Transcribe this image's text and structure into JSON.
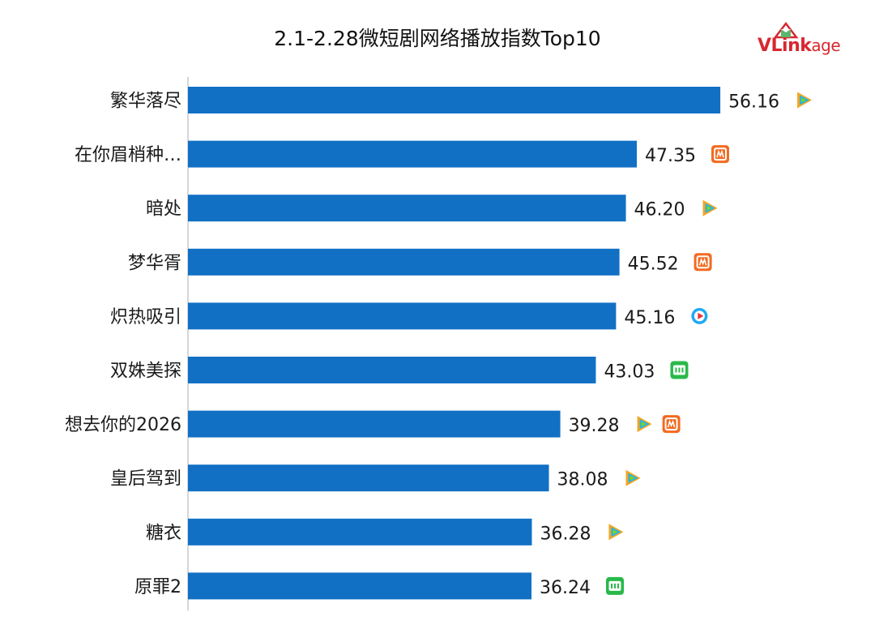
{
  "chart_data": {
    "type": "bar",
    "orientation": "horizontal",
    "title": "2.1-2.28微短剧网络播放指数Top10",
    "categories": [
      "繁华落尽",
      "在你眉梢种…",
      "暗处",
      "梦华胥",
      "炽热吸引",
      "双姝美探",
      "想去你的2026",
      "皇后驾到",
      "糖衣",
      "原罪2"
    ],
    "values": [
      56.16,
      47.35,
      46.2,
      45.52,
      45.16,
      43.03,
      39.28,
      38.08,
      36.28,
      36.24
    ],
    "value_labels": [
      "56.16",
      "47.35",
      "46.20",
      "45.52",
      "45.16",
      "43.03",
      "39.28",
      "38.08",
      "36.28",
      "36.24"
    ],
    "platforms": [
      [
        "tencent-video-icon"
      ],
      [
        "mango-tv-icon"
      ],
      [
        "tencent-video-icon"
      ],
      [
        "mango-tv-icon"
      ],
      [
        "youku-icon"
      ],
      [
        "iqiyi-icon"
      ],
      [
        "tencent-video-icon",
        "mango-tv-icon"
      ],
      [
        "tencent-video-icon"
      ],
      [
        "tencent-video-icon"
      ],
      [
        "iqiyi-icon"
      ]
    ],
    "xlim": [
      0,
      60
    ],
    "bar_color": "#1170c4",
    "grid": false,
    "xlabel": "",
    "ylabel": ""
  },
  "logo": {
    "text_v": "V",
    "text_rest": "Link",
    "text_age": "age",
    "color": "#d7282f"
  }
}
